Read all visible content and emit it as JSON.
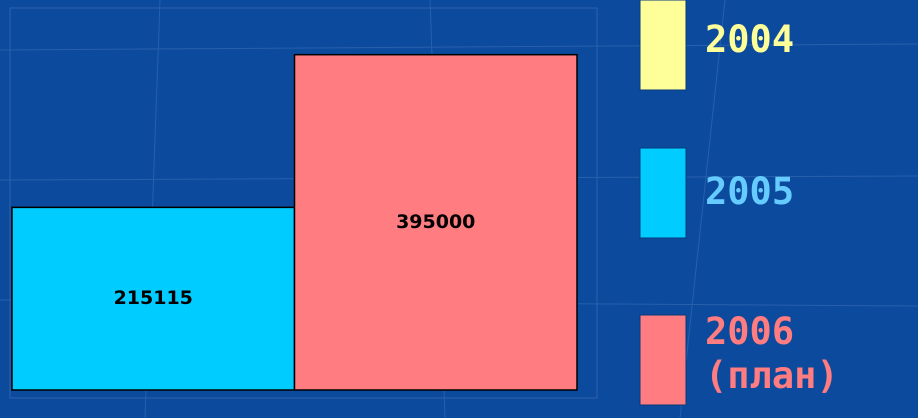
{
  "chart_data": {
    "type": "bar",
    "series": [
      {
        "name": "2004",
        "color": "#ffff99",
        "values": [
          null
        ]
      },
      {
        "name": "2005",
        "color": "#00ccff",
        "values": [
          215115
        ]
      },
      {
        "name": "2006 (план)",
        "color": "#ff7c80",
        "values": [
          395000
        ]
      }
    ],
    "ylim": [
      0,
      450000
    ]
  }
}
